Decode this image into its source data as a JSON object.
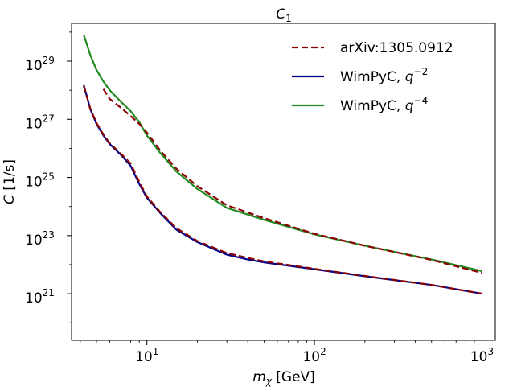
{
  "chart_data": {
    "type": "line",
    "title": "C",
    "title_subscript": "1",
    "xlabel_symbol": "m",
    "xlabel_subscript": "χ",
    "xlabel_unit": " [GeV]",
    "ylabel_symbol": "C",
    "ylabel_unit": " [1/s]",
    "x_scale": "log",
    "y_scale": "log",
    "xlim": [
      3.55,
      1200
    ],
    "ylim": [
      2.5e+19,
      2e+30
    ],
    "x_ticks": [
      {
        "value": 10,
        "base": "10",
        "exp": "1"
      },
      {
        "value": 100,
        "base": "10",
        "exp": "2"
      },
      {
        "value": 1000,
        "base": "10",
        "exp": "3"
      }
    ],
    "y_ticks": [
      {
        "value": 1e+21,
        "base": "10",
        "exp": "21"
      },
      {
        "value": 1e+23,
        "base": "10",
        "exp": "23"
      },
      {
        "value": 1e+25,
        "base": "10",
        "exp": "25"
      },
      {
        "value": 1e+27,
        "base": "10",
        "exp": "27"
      },
      {
        "value": 1e+29,
        "base": "10",
        "exp": "29"
      }
    ],
    "legend_position": "top-right",
    "legend": [
      {
        "label": "arXiv:1305.0912",
        "exp": "",
        "color": "#8b0000",
        "dash": true
      },
      {
        "label": "WimPyC, q",
        "exp": "−2",
        "color": "#00008b",
        "dash": false
      },
      {
        "label": "WimPyC, q",
        "exp": "−4",
        "color": "#228b22",
        "dash": false
      }
    ],
    "series": [
      {
        "name": "WimPyC q^-4",
        "color": "#228b22",
        "dash": false,
        "x": [
          4.2,
          4.6,
          5.0,
          5.5,
          6.0,
          7.0,
          8.0,
          9.0,
          10.0,
          12.0,
          15.0,
          20.0,
          30.0,
          50.0,
          100.0,
          200.0,
          500.0,
          1000.0
        ],
        "y": [
          8e+29,
          1.6e+29,
          5e+28,
          2e+28,
          1e+28,
          4e+27,
          1.9e+27,
          8e+26,
          2.8e+26,
          7e+25,
          1.6e+25,
          4e+24,
          9e+23,
          3.5e+23,
          1.1e+23,
          4.5e+22,
          1.5e+22,
          6e+21
        ]
      },
      {
        "name": "arXiv:1305.0912 upper",
        "color": "#8b0000",
        "dash": true,
        "x": [
          5.5,
          6.0,
          7.0,
          8.0,
          9.0,
          10.0,
          12.0,
          15.0,
          20.0,
          30.0,
          50.0,
          100.0,
          200.0,
          500.0,
          1000.0
        ],
        "y": [
          1.1e+28,
          5e+27,
          2.5e+27,
          1.3e+27,
          7e+26,
          3.5e+26,
          8.5e+25,
          2e+25,
          5e+24,
          1.1e+24,
          4e+23,
          1.15e+23,
          4.5e+22,
          1.45e+22,
          5.2e+21
        ]
      },
      {
        "name": "WimPyC q^-2",
        "color": "#00008b",
        "dash": false,
        "x": [
          4.2,
          4.6,
          5.0,
          5.5,
          6.0,
          7.0,
          8.0,
          9.0,
          10.0,
          12.0,
          15.0,
          20.0,
          30.0,
          40.0,
          50.0,
          100.0,
          200.0,
          500.0,
          1000.0
        ],
        "y": [
          1.5e+28,
          2.2e+27,
          7e+26,
          2.8e+26,
          1.4e+26,
          6e+25,
          2.5e+25,
          6e+24,
          2e+24,
          6e+23,
          1.6e+23,
          6e+22,
          2.2e+22,
          1.5e+22,
          1.2e+22,
          7e+21,
          4e+21,
          2e+21,
          1e+21
        ]
      },
      {
        "name": "arXiv:1305.0912 lower",
        "color": "#8b0000",
        "dash": true,
        "x": [
          4.2,
          4.6,
          5.0,
          5.5,
          6.0,
          7.0,
          8.0,
          9.0,
          10.0,
          12.0,
          15.0,
          20.0,
          30.0,
          40.0,
          50.0,
          100.0,
          200.0,
          500.0,
          1000.0
        ],
        "y": [
          1.4e+28,
          2.3e+27,
          7.5e+26,
          3e+26,
          1.5e+26,
          6.5e+25,
          3e+25,
          7e+24,
          2.2e+24,
          6.5e+23,
          1.8e+23,
          6.5e+22,
          2.5e+22,
          1.7e+22,
          1.3e+22,
          7.2e+21,
          4.1e+21,
          2e+21,
          1e+21
        ]
      }
    ]
  }
}
